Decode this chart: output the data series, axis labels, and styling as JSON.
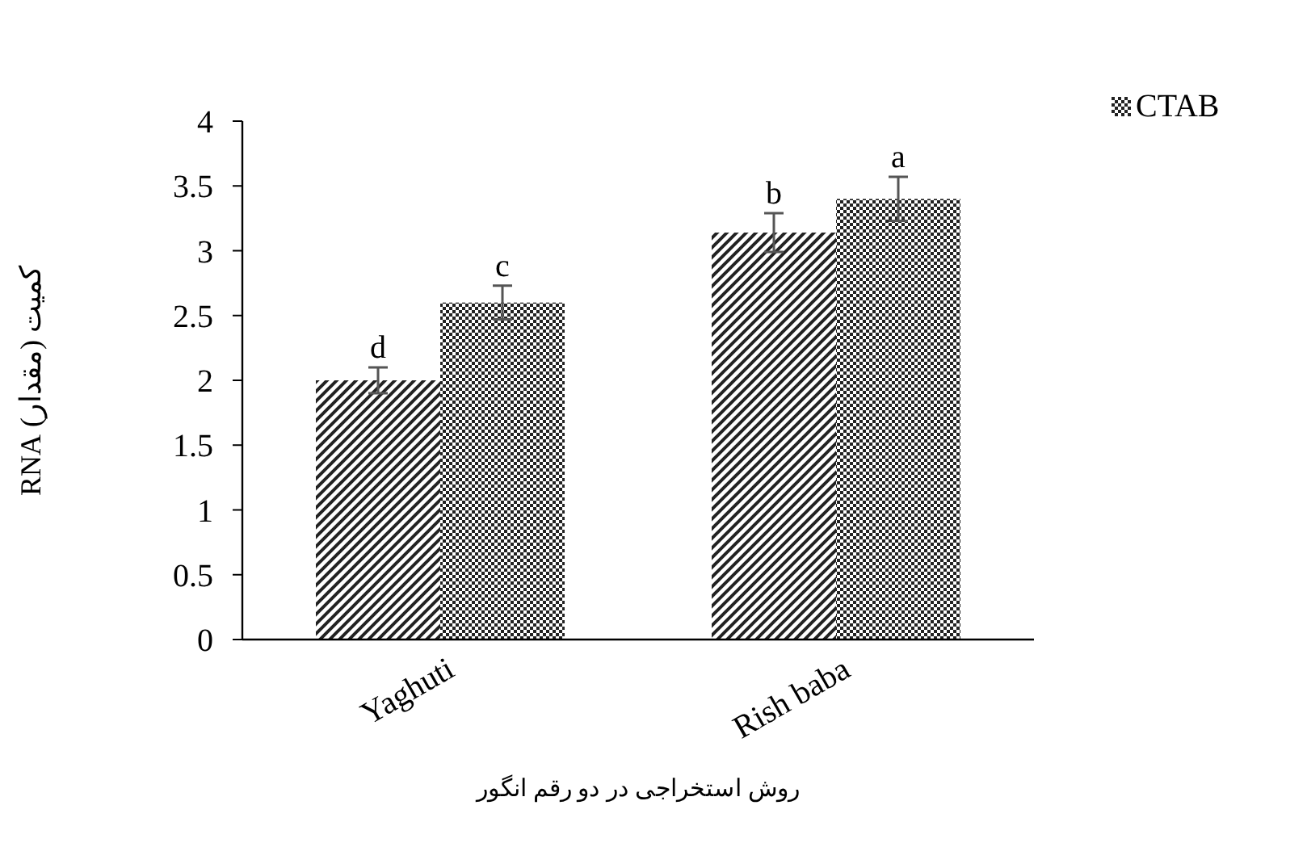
{
  "chart_data": {
    "type": "bar",
    "xlabel": "روش استخراجی در دو رقم انگور",
    "ylabel": "کمیت (مقدار) RNA",
    "categories": [
      "Yaghuti",
      "Rish baba"
    ],
    "series": [
      {
        "color": "#222222",
        "values": [
          2.0,
          3.14
        ],
        "errors": [
          0.1,
          0.15
        ]
      },
      {
        "name": "CTAB",
        "color": "#222222",
        "values": [
          2.6,
          3.4
        ],
        "errors": [
          0.13,
          0.17
        ]
      }
    ],
    "annotations": [
      "d",
      "c",
      "b",
      "a"
    ],
    "ylim": [
      0,
      4
    ],
    "yticks": [
      0,
      0.5,
      1,
      1.5,
      2,
      2.5,
      3,
      3.5,
      4
    ],
    "grid": false,
    "legend": "top right"
  }
}
